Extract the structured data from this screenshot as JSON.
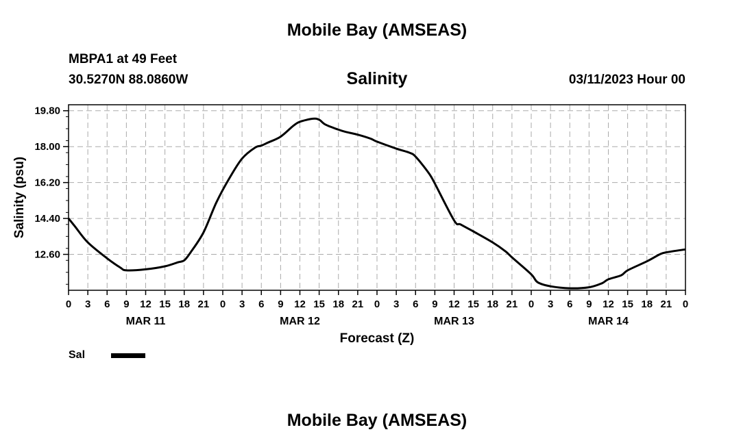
{
  "header": {
    "title_top": "Mobile Bay (AMSEAS)",
    "title_bottom": "Mobile Bay (AMSEAS)",
    "station_line": "MBPA1 at 49 Feet",
    "coords_line": "30.5270N  88.0860W",
    "run_time": "03/11/2023 Hour 00"
  },
  "legend": {
    "label": "Sal",
    "color": "#000000"
  },
  "chart_data": {
    "type": "line",
    "title": "Salinity",
    "xlabel": "Forecast (Z)",
    "ylabel": "Salinity (psu)",
    "ylim": [
      10.8,
      20.1
    ],
    "xlim": [
      0,
      96
    ],
    "yticks": [
      "12.60",
      "14.40",
      "16.20",
      "18.00",
      "19.80"
    ],
    "ytick_values": [
      12.6,
      14.4,
      16.2,
      18.0,
      19.8
    ],
    "xtick_labels": [
      "0",
      "3",
      "6",
      "9",
      "12",
      "15",
      "18",
      "21",
      "0",
      "3",
      "6",
      "9",
      "12",
      "15",
      "18",
      "21",
      "0",
      "3",
      "6",
      "9",
      "12",
      "15",
      "18",
      "21",
      "0",
      "3",
      "6",
      "9",
      "12",
      "15",
      "18",
      "21",
      "0"
    ],
    "date_labels": [
      {
        "label": "MAR 11",
        "hour": 12
      },
      {
        "label": "MAR 12",
        "hour": 36
      },
      {
        "label": "MAR 13",
        "hour": 60
      },
      {
        "label": "MAR 14",
        "hour": 84
      }
    ],
    "grid": true,
    "series": [
      {
        "name": "Sal",
        "color": "#000000",
        "x": [
          0,
          1,
          3,
          6,
          8,
          9,
          12,
          15,
          17,
          18,
          19,
          21,
          23,
          25,
          27,
          29,
          30,
          31,
          33,
          35,
          36,
          38,
          39,
          40,
          42,
          43,
          45,
          47,
          48,
          51,
          53,
          54,
          56,
          57,
          60,
          61,
          63,
          66,
          68,
          69,
          72,
          73,
          75,
          78,
          81,
          83,
          84,
          86,
          87,
          90,
          92,
          93,
          96
        ],
        "y": [
          14.4,
          14.0,
          13.2,
          12.4,
          11.95,
          11.8,
          11.85,
          12.0,
          12.2,
          12.3,
          12.7,
          13.7,
          15.2,
          16.4,
          17.4,
          17.95,
          18.05,
          18.2,
          18.5,
          19.05,
          19.25,
          19.4,
          19.35,
          19.1,
          18.85,
          18.75,
          18.6,
          18.4,
          18.25,
          17.9,
          17.7,
          17.5,
          16.7,
          16.15,
          14.3,
          14.1,
          13.75,
          13.2,
          12.75,
          12.45,
          11.6,
          11.2,
          11.0,
          10.9,
          10.95,
          11.15,
          11.35,
          11.55,
          11.8,
          12.25,
          12.6,
          12.7,
          12.85
        ]
      }
    ]
  }
}
